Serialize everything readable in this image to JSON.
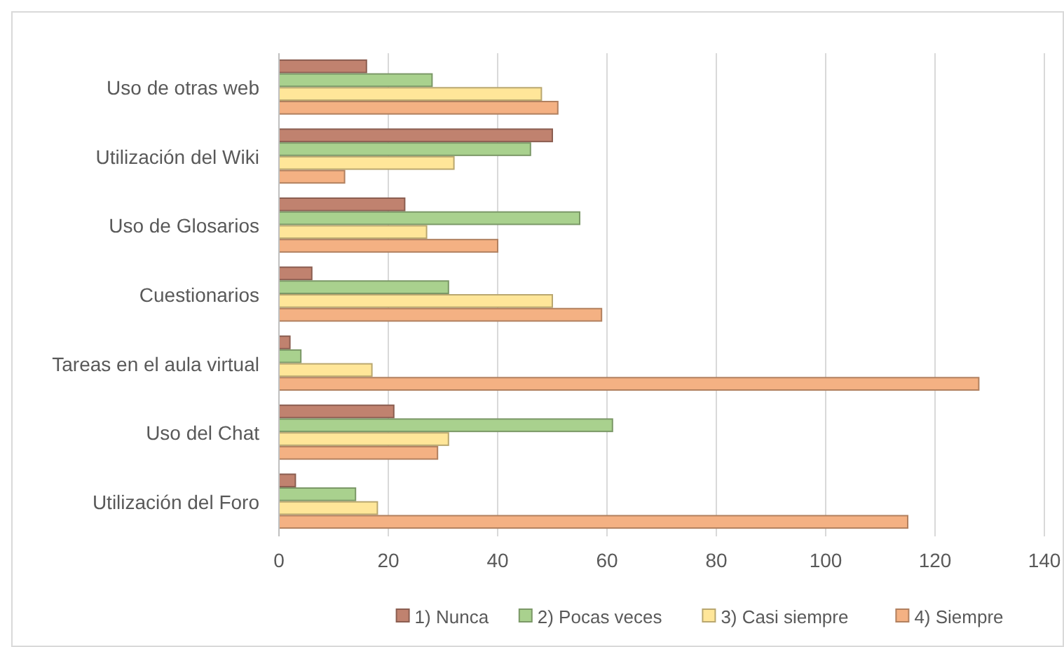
{
  "chart_data": {
    "type": "bar",
    "orientation": "horizontal",
    "categories": [
      "Uso de otras web",
      "Utilización del Wiki",
      "Uso de Glosarios",
      "Cuestionarios",
      "Tareas en el aula virtual",
      "Uso del Chat",
      "Utilización del Foro"
    ],
    "series": [
      {
        "name": "1) Nunca",
        "color": "#c0826f",
        "values": [
          16,
          50,
          23,
          6,
          2,
          21,
          3
        ]
      },
      {
        "name": "2) Pocas veces",
        "color": "#a9d18e",
        "values": [
          28,
          46,
          55,
          31,
          4,
          61,
          14
        ]
      },
      {
        "name": "3) Casi siempre",
        "color": "#ffe699",
        "values": [
          48,
          32,
          27,
          50,
          17,
          31,
          18
        ]
      },
      {
        "name": "4) Siempre",
        "color": "#f4b183",
        "values": [
          51,
          12,
          40,
          59,
          128,
          29,
          115
        ]
      }
    ],
    "xlim": [
      0,
      140
    ],
    "xticks": [
      0,
      20,
      40,
      60,
      80,
      100,
      120,
      140
    ],
    "grid": "x",
    "legend": "bottom"
  }
}
